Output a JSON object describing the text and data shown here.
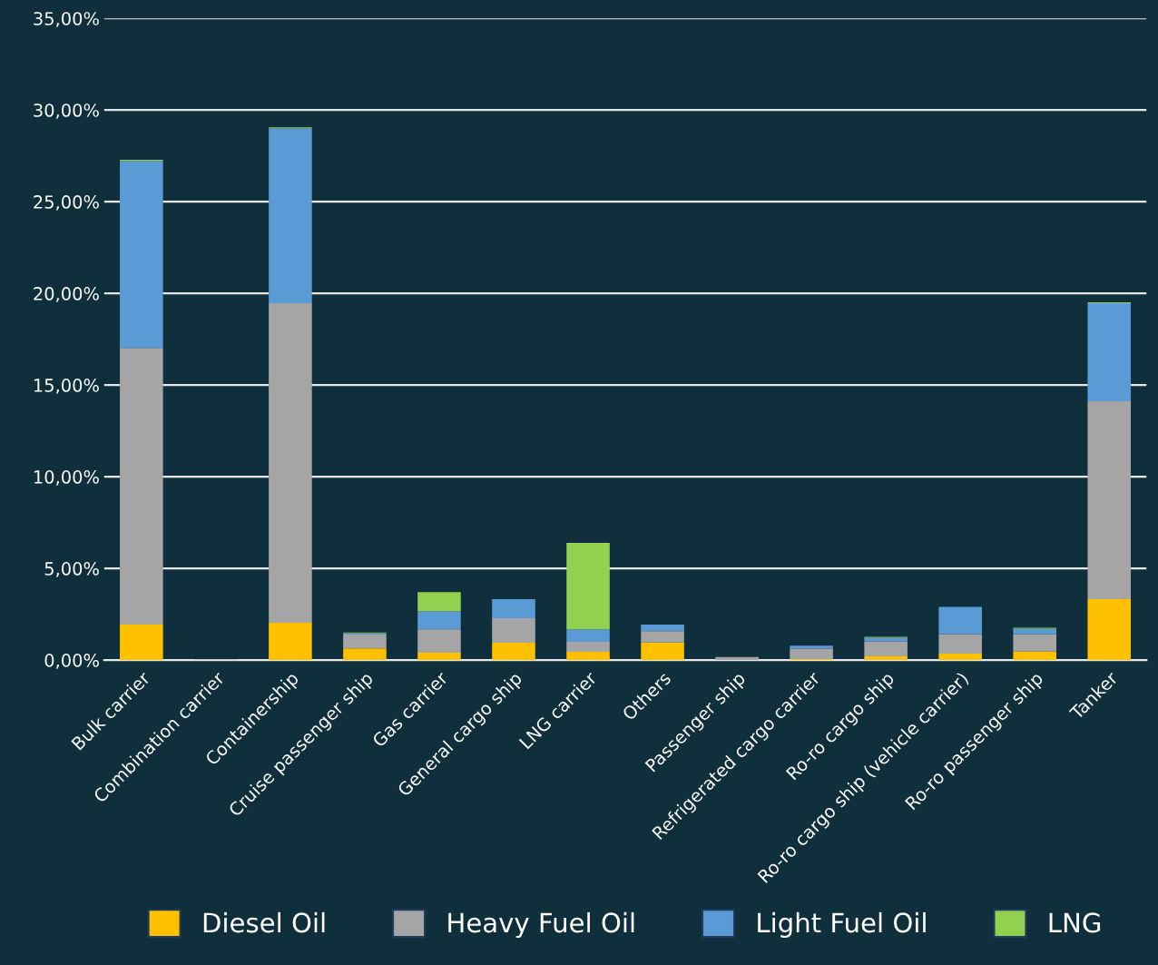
{
  "chart_data": {
    "type": "bar",
    "stacked": true,
    "categories": [
      "Bulk carrier",
      "Combination carrier",
      "Containership",
      "Cruise passenger ship",
      "Gas carrier",
      "General cargo ship",
      "LNG carrier",
      "Others",
      "Passenger ship",
      "Refrigerated cargo carrier",
      "Ro-ro cargo ship",
      "Ro-ro cargo ship (vehicle carrier)",
      "Ro-ro passenger ship",
      "Tanker"
    ],
    "series": [
      {
        "name": "Diesel Oil",
        "color": "#ffc000",
        "values": [
          1.93,
          0,
          2.03,
          0.64,
          0.4,
          0.94,
          0.45,
          0.96,
          0,
          0.05,
          0.2,
          0.35,
          0.47,
          3.32
        ]
      },
      {
        "name": "Heavy Fuel Oil",
        "color": "#a5a5a5",
        "values": [
          15.1,
          0.03,
          17.43,
          0.75,
          1.28,
          1.34,
          0.54,
          0.62,
          0.17,
          0.57,
          0.82,
          1.06,
          0.94,
          10.79
        ]
      },
      {
        "name": "Light Fuel Oil",
        "color": "#5b9bd5",
        "values": [
          10.2,
          0,
          9.55,
          0.07,
          0.99,
          1.04,
          0.69,
          0.35,
          0,
          0.17,
          0.2,
          1.49,
          0.3,
          5.35
        ]
      },
      {
        "name": "LNG",
        "color": "#92d050",
        "values": [
          0.05,
          0,
          0.05,
          0.04,
          1.04,
          0,
          4.71,
          0,
          0,
          0,
          0.05,
          0,
          0.05,
          0.05
        ]
      }
    ],
    "ylim": [
      0,
      35
    ],
    "yticks": [
      {
        "value": 0,
        "label": "0,00%"
      },
      {
        "value": 5,
        "label": "5,00%"
      },
      {
        "value": 10,
        "label": "10,00%"
      },
      {
        "value": 15,
        "label": "15,00%"
      },
      {
        "value": 20,
        "label": "20,00%"
      },
      {
        "value": 25,
        "label": "25,00%"
      },
      {
        "value": 30,
        "label": "30,00%"
      },
      {
        "value": 35,
        "label": "35,00%"
      }
    ],
    "grid": "y",
    "legend": "bottom"
  }
}
